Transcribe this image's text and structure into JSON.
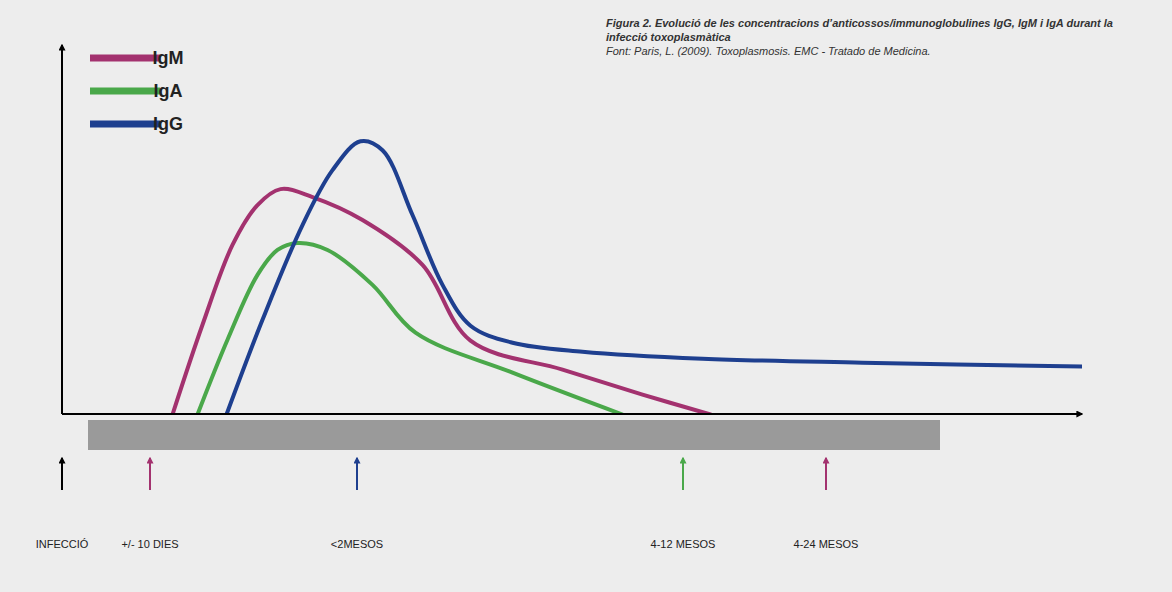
{
  "chart_data": {
    "type": "line",
    "title": "Figura 2. Evolució de les concentracions d’anticossos/immunoglobulines IgG, IgM i IgA durant la infecció toxoplasmàtica",
    "source": "Font: Paris, L. (2009). Toxoplasmosis. EMC - Tratado de Medicina.",
    "xlim": [
      0,
      1020
    ],
    "ylim": [
      0,
      370
    ],
    "tick_labels": false,
    "legend": "top-left",
    "series": [
      {
        "name": "IgM",
        "color": "#a3326f",
        "x": [
          110,
          140,
          170,
          195,
          218,
          250,
          300,
          360,
          408,
          500,
          580,
          648
        ],
        "values": [
          0,
          90,
          170,
          210,
          226,
          218,
          195,
          150,
          74,
          45,
          20,
          0
        ]
      },
      {
        "name": "IgA",
        "color": "#4aa84a",
        "x": [
          135,
          165,
          195,
          215,
          235,
          265,
          310,
          353,
          450,
          560
        ],
        "values": [
          0,
          75,
          140,
          165,
          172,
          165,
          130,
          82,
          42,
          0
        ]
      },
      {
        "name": "IgG",
        "color": "#1e3f8f",
        "x": [
          164,
          200,
          240,
          270,
          298,
          320,
          350,
          380,
          408,
          450,
          520,
          640,
          800,
          1020
        ],
        "values": [
          0,
          95,
          190,
          245,
          274,
          265,
          200,
          130,
          89,
          72,
          63,
          56,
          52,
          48
        ]
      }
    ],
    "annotations": [
      {
        "x": 0,
        "text": "INFECCIÓ",
        "color": "#000000"
      },
      {
        "x": 88,
        "text": "+/- 10 DIES",
        "color": "#a3326f"
      },
      {
        "x": 295,
        "text": "<2MESOS",
        "color": "#1e3f8f"
      },
      {
        "x": 621,
        "text": "4-12 MESOS",
        "color": "#4aa84a"
      },
      {
        "x": 764,
        "text": "4-24 MESOS",
        "color": "#a3326f"
      }
    ]
  }
}
